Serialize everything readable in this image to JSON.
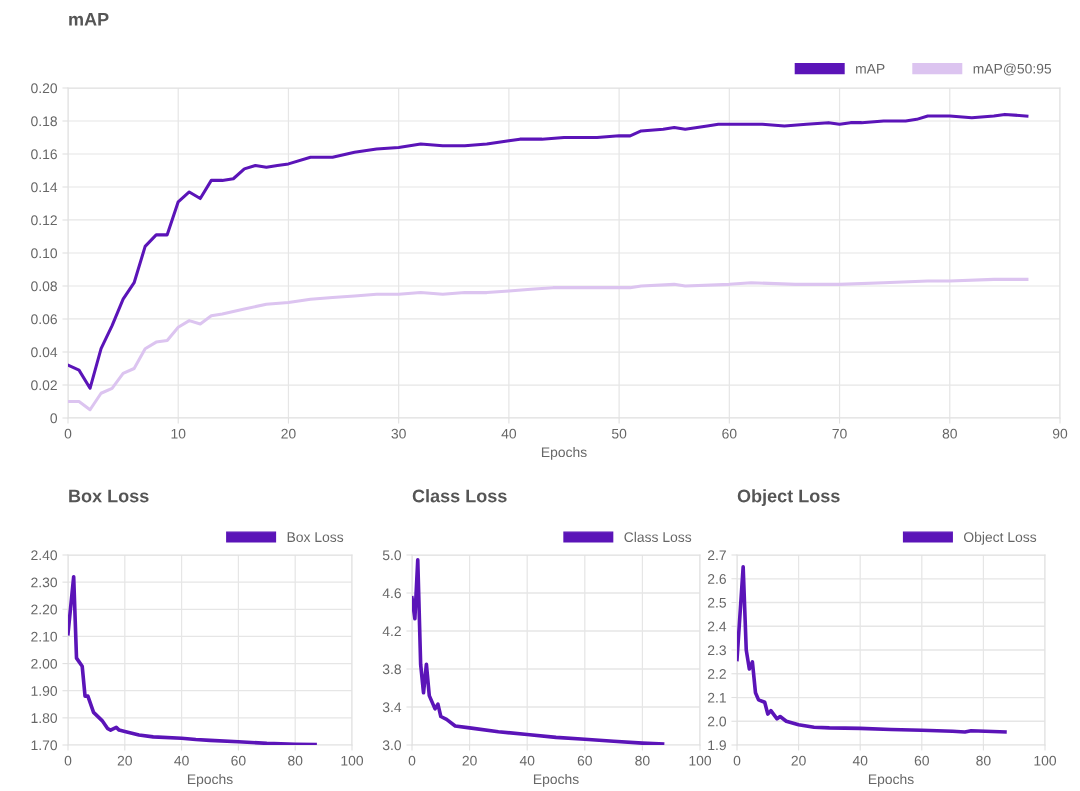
{
  "chart_data": [
    {
      "type": "line",
      "title": "mAP",
      "xlabel": "Epochs",
      "xlim": [
        0,
        90
      ],
      "xticks": [
        0,
        10,
        20,
        30,
        40,
        50,
        60,
        70,
        80,
        90
      ],
      "ylim": [
        0,
        0.2
      ],
      "yticks": [
        0,
        {
          "value": 0.02,
          "label": "0.02"
        },
        {
          "value": 0.04,
          "label": "0.04"
        },
        {
          "value": 0.06,
          "label": "0.06"
        },
        {
          "value": 0.08,
          "label": "0.08"
        },
        {
          "value": 0.1,
          "label": "0.10"
        },
        {
          "value": 0.12,
          "label": "0.12"
        },
        {
          "value": 0.14,
          "label": "0.14"
        },
        {
          "value": 0.16,
          "label": "0.16"
        },
        {
          "value": 0.18,
          "label": "0.18"
        },
        {
          "value": 0.2,
          "label": "0.20"
        }
      ],
      "grid": true,
      "legend": "top right",
      "marker": "none",
      "line_style": "solid",
      "series": [
        {
          "name": "mAP",
          "color": "#5b14b8",
          "x": [
            0,
            1,
            2,
            3,
            4,
            5,
            6,
            7,
            8,
            9,
            10,
            11,
            12,
            13,
            14,
            15,
            16,
            17,
            18,
            19,
            20,
            22,
            24,
            26,
            28,
            30,
            32,
            34,
            36,
            38,
            40,
            41,
            43,
            45,
            48,
            50,
            51,
            52,
            54,
            55,
            56,
            58,
            59,
            61,
            63,
            65,
            67,
            69,
            70,
            71,
            72,
            74,
            76,
            77,
            78,
            80,
            82,
            84,
            85,
            87
          ],
          "values": [
            0.032,
            0.029,
            0.018,
            0.042,
            0.056,
            0.072,
            0.082,
            0.104,
            0.111,
            0.111,
            0.131,
            0.137,
            0.133,
            0.144,
            0.144,
            0.145,
            0.151,
            0.153,
            0.152,
            0.153,
            0.154,
            0.158,
            0.158,
            0.161,
            0.163,
            0.164,
            0.166,
            0.165,
            0.165,
            0.166,
            0.168,
            0.169,
            0.169,
            0.17,
            0.17,
            0.171,
            0.171,
            0.174,
            0.175,
            0.176,
            0.175,
            0.177,
            0.178,
            0.178,
            0.178,
            0.177,
            0.178,
            0.179,
            0.178,
            0.179,
            0.179,
            0.18,
            0.18,
            0.181,
            0.183,
            0.183,
            0.182,
            0.183,
            0.184,
            0.183
          ]
        },
        {
          "name": "mAP@50:95",
          "color": "#dcc4f0",
          "x": [
            0,
            1,
            2,
            3,
            4,
            5,
            6,
            7,
            8,
            9,
            10,
            11,
            12,
            13,
            14,
            16,
            18,
            20,
            22,
            24,
            26,
            28,
            30,
            32,
            34,
            36,
            38,
            40,
            42,
            44,
            48,
            51,
            52,
            55,
            56,
            60,
            62,
            66,
            70,
            74,
            78,
            80,
            84,
            85,
            87
          ],
          "values": [
            0.01,
            0.01,
            0.005,
            0.015,
            0.018,
            0.027,
            0.03,
            0.042,
            0.046,
            0.047,
            0.055,
            0.059,
            0.057,
            0.062,
            0.063,
            0.066,
            0.069,
            0.07,
            0.072,
            0.073,
            0.074,
            0.075,
            0.075,
            0.076,
            0.075,
            0.076,
            0.076,
            0.077,
            0.078,
            0.079,
            0.079,
            0.079,
            0.08,
            0.081,
            0.08,
            0.081,
            0.082,
            0.081,
            0.081,
            0.082,
            0.083,
            0.083,
            0.084,
            0.084,
            0.084
          ]
        }
      ]
    },
    {
      "type": "line",
      "title": "Box Loss",
      "xlabel": "Epochs",
      "xlim": [
        0,
        100
      ],
      "xticks": [
        0,
        20,
        40,
        60,
        80,
        100
      ],
      "ylim": [
        1.7,
        2.4
      ],
      "yticks": [
        {
          "value": 1.7,
          "label": "1.70"
        },
        {
          "value": 1.8,
          "label": "1.80"
        },
        {
          "value": 1.9,
          "label": "1.90"
        },
        {
          "value": 2.0,
          "label": "2.00"
        },
        {
          "value": 2.1,
          "label": "2.10"
        },
        {
          "value": 2.2,
          "label": "2.20"
        },
        {
          "value": 2.3,
          "label": "2.30"
        },
        {
          "value": 2.4,
          "label": "2.40"
        }
      ],
      "grid": true,
      "legend": "top right",
      "marker": "none",
      "line_style": "solid",
      "series": [
        {
          "name": "Box Loss",
          "color": "#5b14b8",
          "x": [
            0,
            2,
            3,
            5,
            6,
            7,
            9,
            11,
            12,
            14,
            15,
            17,
            18,
            20,
            25,
            30,
            40,
            45,
            50,
            60,
            70,
            80,
            87
          ],
          "values": [
            2.11,
            2.32,
            2.02,
            1.99,
            1.88,
            1.88,
            1.82,
            1.8,
            1.79,
            1.76,
            1.755,
            1.765,
            1.755,
            1.75,
            1.737,
            1.73,
            1.725,
            1.72,
            1.717,
            1.712,
            1.706,
            1.703,
            1.702
          ]
        }
      ]
    },
    {
      "type": "line",
      "title": "Class Loss",
      "xlabel": "Epochs",
      "xlim": [
        0,
        100
      ],
      "xticks": [
        0,
        20,
        40,
        60,
        80,
        100
      ],
      "ylim": [
        3.0,
        5.0
      ],
      "yticks": [
        {
          "value": 3.0,
          "label": "3.0"
        },
        {
          "value": 3.4,
          "label": "3.4"
        },
        {
          "value": 3.8,
          "label": "3.8"
        },
        {
          "value": 4.2,
          "label": "4.2"
        },
        {
          "value": 4.6,
          "label": "4.6"
        },
        {
          "value": 5.0,
          "label": "5.0"
        }
      ],
      "grid": true,
      "legend": "top right",
      "marker": "none",
      "line_style": "solid",
      "series": [
        {
          "name": "Class Loss",
          "color": "#5b14b8",
          "x": [
            0,
            1,
            2,
            3,
            4,
            5,
            6,
            8,
            9,
            10,
            12,
            15,
            20,
            30,
            40,
            50,
            60,
            70,
            80,
            87
          ],
          "values": [
            4.55,
            4.33,
            4.95,
            3.85,
            3.55,
            3.85,
            3.52,
            3.38,
            3.43,
            3.3,
            3.27,
            3.2,
            3.18,
            3.14,
            3.11,
            3.08,
            3.06,
            3.04,
            3.02,
            3.01
          ]
        }
      ]
    },
    {
      "type": "line",
      "title": "Object Loss",
      "xlabel": "Epochs",
      "xlim": [
        0,
        100
      ],
      "xticks": [
        0,
        20,
        40,
        60,
        80,
        100
      ],
      "ylim": [
        1.9,
        2.7
      ],
      "yticks": [
        {
          "value": 1.9,
          "label": "1.9"
        },
        {
          "value": 2.0,
          "label": "2.0"
        },
        {
          "value": 2.1,
          "label": "2.1"
        },
        {
          "value": 2.2,
          "label": "2.2"
        },
        {
          "value": 2.3,
          "label": "2.3"
        },
        {
          "value": 2.4,
          "label": "2.4"
        },
        {
          "value": 2.5,
          "label": "2.5"
        },
        {
          "value": 2.6,
          "label": "2.6"
        },
        {
          "value": 2.7,
          "label": "2.7"
        }
      ],
      "grid": true,
      "legend": "top right",
      "marker": "none",
      "line_style": "solid",
      "series": [
        {
          "name": "Object Loss",
          "color": "#5b14b8",
          "x": [
            0,
            2,
            3,
            4,
            5,
            6,
            7,
            9,
            10,
            11,
            13,
            14,
            16,
            20,
            25,
            30,
            40,
            50,
            60,
            70,
            74,
            76,
            87
          ],
          "values": [
            2.26,
            2.65,
            2.3,
            2.22,
            2.25,
            2.12,
            2.09,
            2.08,
            2.03,
            2.045,
            2.01,
            2.02,
            2.0,
            1.985,
            1.975,
            1.972,
            1.97,
            1.965,
            1.962,
            1.958,
            1.955,
            1.96,
            1.955
          ]
        }
      ]
    }
  ]
}
